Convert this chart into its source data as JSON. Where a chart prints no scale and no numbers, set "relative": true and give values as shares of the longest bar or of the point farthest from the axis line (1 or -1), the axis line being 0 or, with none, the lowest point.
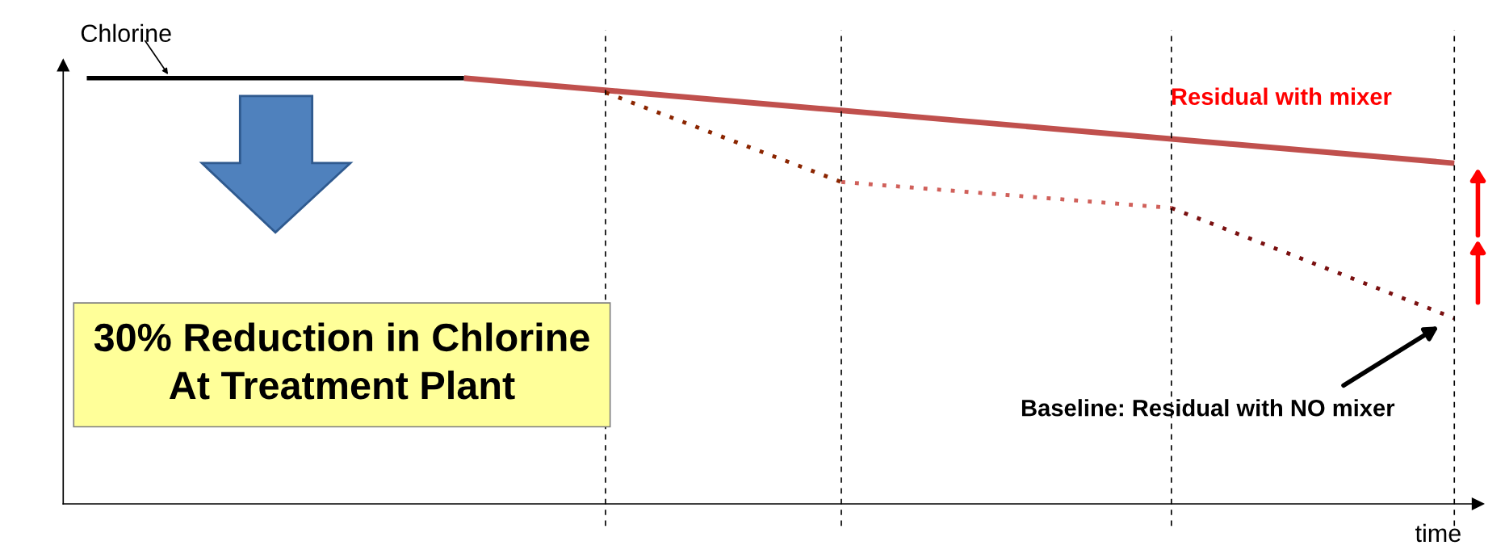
{
  "chart_data": {
    "type": "line",
    "relative": true,
    "xlabel": "time",
    "ylabel": "Chlorine",
    "legend": false,
    "marker": "none",
    "categories": [
      null,
      null,
      null,
      null,
      null,
      null,
      null,
      null,
      null,
      null,
      null,
      null,
      null,
      null,
      null,
      null,
      null,
      null,
      null,
      null,
      null,
      null,
      null,
      null,
      null,
      null,
      null,
      null,
      null,
      null
    ],
    "series": [
      {
        "color": "#000000",
        "line_style": "solid",
        "values": [
          1,
          null,
          null,
          null,
          null,
          null,
          null,
          null,
          1,
          null,
          null,
          null,
          null,
          null,
          null,
          null,
          null,
          null,
          null,
          null,
          null,
          null,
          null,
          null,
          null,
          null,
          null,
          null,
          null,
          null
        ]
      },
      {
        "color": "#c0504d",
        "line_style": "solid",
        "values": [
          null,
          null,
          null,
          null,
          null,
          null,
          null,
          null,
          1,
          null,
          null,
          null,
          null,
          null,
          null,
          null,
          null,
          null,
          null,
          null,
          null,
          null,
          null,
          null,
          null,
          null,
          null,
          null,
          null,
          0.8
        ]
      },
      {
        "color": "#8b2500",
        "line_style": "dotted",
        "values": [
          null,
          null,
          null,
          null,
          null,
          null,
          null,
          null,
          null,
          null,
          null,
          0.966,
          null,
          null,
          null,
          null,
          0.756,
          null,
          null,
          null,
          null,
          null,
          null,
          null,
          null,
          null,
          null,
          null,
          null,
          null
        ]
      },
      {
        "color": "#d0605a",
        "line_style": "dotted",
        "values": [
          null,
          null,
          null,
          null,
          null,
          null,
          null,
          null,
          null,
          null,
          null,
          null,
          null,
          null,
          null,
          null,
          0.756,
          null,
          null,
          null,
          null,
          null,
          null,
          0.695,
          null,
          null,
          null,
          null,
          null,
          null
        ]
      },
      {
        "color": "#7a1010",
        "line_style": "dotted",
        "values": [
          null,
          null,
          null,
          null,
          null,
          null,
          null,
          null,
          null,
          null,
          null,
          null,
          null,
          null,
          null,
          null,
          null,
          null,
          null,
          null,
          null,
          null,
          null,
          0.695,
          null,
          null,
          null,
          null,
          null,
          0.436
        ]
      }
    ],
    "annotations": [
      "Residual with mixer",
      "Baseline: Residual with NO mixer",
      "30% Reduction in Chlorine\nAt Treatment Plant"
    ]
  }
}
